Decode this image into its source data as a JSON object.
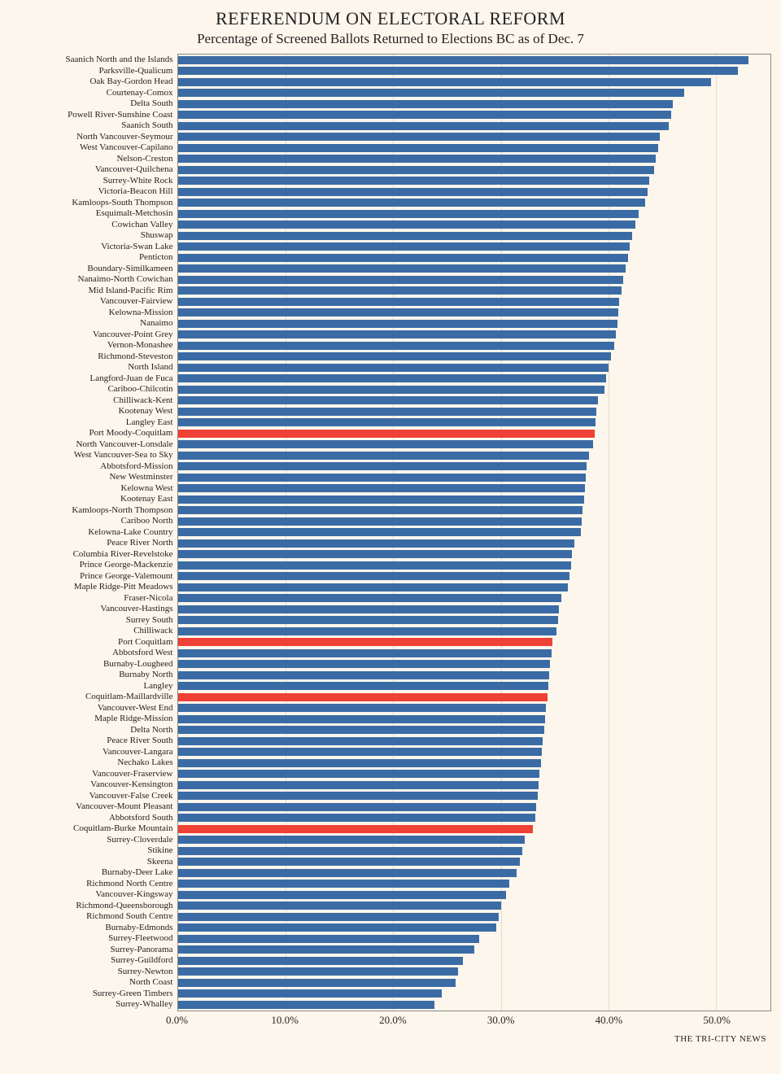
{
  "chart": {
    "type": "bar",
    "title": "REFERENDUM ON ELECTORAL REFORM",
    "subtitle": "Percentage of Screened Ballots Returned to Elections BC as of Dec. 7",
    "credit": "THE TRI-CITY NEWS",
    "background_color": "#fdf6ec",
    "bar_color_default": "#3b6ba5",
    "bar_color_highlight": "#ef4135",
    "grid_color": "#e2dccf",
    "border_color": "#888888",
    "title_fontsize": 22,
    "subtitle_fontsize": 17,
    "label_fontsize": 11,
    "xmax": 55.0,
    "xtick_step": 10.0,
    "xtick_labels": [
      "0.0%",
      "10.0%",
      "20.0%",
      "30.0%",
      "40.0%",
      "50.0%"
    ],
    "rows": [
      {
        "label": "Saanich North and the Islands",
        "value": 53.0,
        "hl": false
      },
      {
        "label": "Parksville-Qualicum",
        "value": 52.0,
        "hl": false
      },
      {
        "label": "Oak Bay-Gordon Head",
        "value": 49.5,
        "hl": false
      },
      {
        "label": "Courtenay-Comox",
        "value": 47.0,
        "hl": false
      },
      {
        "label": "Delta South",
        "value": 46.0,
        "hl": false
      },
      {
        "label": "Powell River-Sunshine Coast",
        "value": 45.8,
        "hl": false
      },
      {
        "label": "Saanich South",
        "value": 45.6,
        "hl": false
      },
      {
        "label": "North Vancouver-Seymour",
        "value": 44.8,
        "hl": false
      },
      {
        "label": "West Vancouver-Capilano",
        "value": 44.6,
        "hl": false
      },
      {
        "label": "Nelson-Creston",
        "value": 44.4,
        "hl": false
      },
      {
        "label": "Vancouver-Quilchena",
        "value": 44.2,
        "hl": false
      },
      {
        "label": "Surrey-White Rock",
        "value": 43.8,
        "hl": false
      },
      {
        "label": "Victoria-Beacon Hill",
        "value": 43.6,
        "hl": false
      },
      {
        "label": "Kamloops-South Thompson",
        "value": 43.4,
        "hl": false
      },
      {
        "label": "Esquimalt-Metchosin",
        "value": 42.8,
        "hl": false
      },
      {
        "label": "Cowichan Valley",
        "value": 42.5,
        "hl": false
      },
      {
        "label": "Shuswap",
        "value": 42.2,
        "hl": false
      },
      {
        "label": "Victoria-Swan Lake",
        "value": 42.0,
        "hl": false
      },
      {
        "label": "Penticton",
        "value": 41.8,
        "hl": false
      },
      {
        "label": "Boundary-Similkameen",
        "value": 41.6,
        "hl": false
      },
      {
        "label": "Nanaimo-North Cowichan",
        "value": 41.4,
        "hl": false
      },
      {
        "label": "Mid Island-Pacific Rim",
        "value": 41.2,
        "hl": false
      },
      {
        "label": "Vancouver-Fairview",
        "value": 41.0,
        "hl": false
      },
      {
        "label": "Kelowna-Mission",
        "value": 40.9,
        "hl": false
      },
      {
        "label": "Nanaimo",
        "value": 40.8,
        "hl": false
      },
      {
        "label": "Vancouver-Point Grey",
        "value": 40.7,
        "hl": false
      },
      {
        "label": "Vernon-Monashee",
        "value": 40.5,
        "hl": false
      },
      {
        "label": "Richmond-Steveston",
        "value": 40.2,
        "hl": false
      },
      {
        "label": "North Island",
        "value": 40.0,
        "hl": false
      },
      {
        "label": "Langford-Juan de Fuca",
        "value": 39.8,
        "hl": false
      },
      {
        "label": "Cariboo-Chilcotin",
        "value": 39.6,
        "hl": false
      },
      {
        "label": "Chilliwack-Kent",
        "value": 39.0,
        "hl": false
      },
      {
        "label": "Kootenay West",
        "value": 38.9,
        "hl": false
      },
      {
        "label": "Langley East",
        "value": 38.8,
        "hl": false
      },
      {
        "label": "Port Moody-Coquitlam",
        "value": 38.7,
        "hl": true
      },
      {
        "label": "North Vancouver-Lonsdale",
        "value": 38.6,
        "hl": false
      },
      {
        "label": "West Vancouver-Sea to Sky",
        "value": 38.2,
        "hl": false
      },
      {
        "label": "Abbotsford-Mission",
        "value": 38.0,
        "hl": false
      },
      {
        "label": "New Westminster",
        "value": 37.9,
        "hl": false
      },
      {
        "label": "Kelowna West",
        "value": 37.8,
        "hl": false
      },
      {
        "label": "Kootenay East",
        "value": 37.7,
        "hl": false
      },
      {
        "label": "Kamloops-North Thompson",
        "value": 37.6,
        "hl": false
      },
      {
        "label": "Cariboo North",
        "value": 37.5,
        "hl": false
      },
      {
        "label": "Kelowna-Lake Country",
        "value": 37.4,
        "hl": false
      },
      {
        "label": "Peace River North",
        "value": 36.8,
        "hl": false
      },
      {
        "label": "Columbia River-Revelstoke",
        "value": 36.6,
        "hl": false
      },
      {
        "label": "Prince George-Mackenzie",
        "value": 36.5,
        "hl": false
      },
      {
        "label": "Prince George-Valemount",
        "value": 36.4,
        "hl": false
      },
      {
        "label": "Maple Ridge-Pitt Meadows",
        "value": 36.2,
        "hl": false
      },
      {
        "label": "Fraser-Nicola",
        "value": 35.6,
        "hl": false
      },
      {
        "label": "Vancouver-Hastings",
        "value": 35.4,
        "hl": false
      },
      {
        "label": "Surrey South",
        "value": 35.3,
        "hl": false
      },
      {
        "label": "Chilliwack",
        "value": 35.2,
        "hl": false
      },
      {
        "label": "Port Coquitlam",
        "value": 34.8,
        "hl": true
      },
      {
        "label": "Abbotsford West",
        "value": 34.7,
        "hl": false
      },
      {
        "label": "Burnaby-Lougheed",
        "value": 34.6,
        "hl": false
      },
      {
        "label": "Burnaby North",
        "value": 34.5,
        "hl": false
      },
      {
        "label": "Langley",
        "value": 34.4,
        "hl": false
      },
      {
        "label": "Coquitlam-Maillardville",
        "value": 34.3,
        "hl": true
      },
      {
        "label": "Vancouver-West End",
        "value": 34.2,
        "hl": false
      },
      {
        "label": "Maple Ridge-Mission",
        "value": 34.1,
        "hl": false
      },
      {
        "label": "Delta North",
        "value": 34.0,
        "hl": false
      },
      {
        "label": "Peace River South",
        "value": 33.9,
        "hl": false
      },
      {
        "label": "Vancouver-Langara",
        "value": 33.8,
        "hl": false
      },
      {
        "label": "Nechako Lakes",
        "value": 33.7,
        "hl": false
      },
      {
        "label": "Vancouver-Fraserview",
        "value": 33.6,
        "hl": false
      },
      {
        "label": "Vancouver-Kensington",
        "value": 33.5,
        "hl": false
      },
      {
        "label": "Vancouver-False Creek",
        "value": 33.4,
        "hl": false
      },
      {
        "label": "Vancouver-Mount Pleasant",
        "value": 33.3,
        "hl": false
      },
      {
        "label": "Abbotsford South",
        "value": 33.2,
        "hl": false
      },
      {
        "label": "Coquitlam-Burke Mountain",
        "value": 33.0,
        "hl": true
      },
      {
        "label": "Surrey-Cloverdale",
        "value": 32.2,
        "hl": false
      },
      {
        "label": "Stikine",
        "value": 32.0,
        "hl": false
      },
      {
        "label": "Skeena",
        "value": 31.8,
        "hl": false
      },
      {
        "label": "Burnaby-Deer Lake",
        "value": 31.5,
        "hl": false
      },
      {
        "label": "Richmond North Centre",
        "value": 30.8,
        "hl": false
      },
      {
        "label": "Vancouver-Kingsway",
        "value": 30.5,
        "hl": false
      },
      {
        "label": "Richmond-Queensborough",
        "value": 30.0,
        "hl": false
      },
      {
        "label": "Richmond South Centre",
        "value": 29.8,
        "hl": false
      },
      {
        "label": "Burnaby-Edmonds",
        "value": 29.6,
        "hl": false
      },
      {
        "label": "Surrey-Fleetwood",
        "value": 28.0,
        "hl": false
      },
      {
        "label": "Surrey-Panorama",
        "value": 27.5,
        "hl": false
      },
      {
        "label": "Surrey-Guildford",
        "value": 26.5,
        "hl": false
      },
      {
        "label": "Surrey-Newton",
        "value": 26.0,
        "hl": false
      },
      {
        "label": "North Coast",
        "value": 25.8,
        "hl": false
      },
      {
        "label": "Surrey-Green Timbers",
        "value": 24.5,
        "hl": false
      },
      {
        "label": "Surrey-Whalley",
        "value": 23.8,
        "hl": false
      }
    ]
  }
}
